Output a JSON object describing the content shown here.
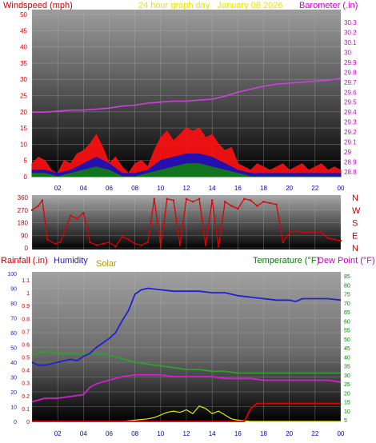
{
  "colors": {
    "windspeed_title": "#d40000",
    "date_title": "#f0e000",
    "barometer_title": "#cc00cc",
    "barometer_line": "#d040e0",
    "wind_gust": "#ff1010",
    "wind_speed": "#1010c0",
    "wind_avg": "#108010",
    "wind_dir": "#e00000",
    "rain_axis": "#c00000",
    "humidity": "#2020d0",
    "solar": "#e8e800",
    "temperature": "#30a030",
    "dewpoint": "#d020d0",
    "temp_axis": "#008000",
    "time_axis": "#0000c0"
  },
  "chart_data": [
    {
      "type": "line",
      "title": "24 hour graph day   January 08 2026",
      "ylabel": "Windspeed (mph)",
      "y2label": "Barometer (.in)",
      "x_tick_labels": [
        "02",
        "04",
        "06",
        "08",
        "10",
        "12",
        "14",
        "16",
        "18",
        "20",
        "22",
        "00"
      ],
      "ylim": [
        0,
        50
      ],
      "y_ticks": [
        0,
        5,
        10,
        15,
        20,
        25,
        30,
        35,
        40,
        45,
        50
      ],
      "y2lim": [
        28.7,
        30.3
      ],
      "y2_ticks": [
        "28.8",
        "28.9",
        "29",
        "29.1",
        "29.2",
        "29.3",
        "29.4",
        "29.5",
        "29.6",
        "29.7",
        "29.8",
        "29.9",
        "30",
        "30.1",
        "30.2",
        "30.3"
      ],
      "grid": true,
      "series": [
        {
          "name": "Barometer",
          "axis": "right",
          "x": [
            0,
            1,
            2,
            3,
            4,
            5,
            6,
            7,
            8,
            9,
            10,
            11,
            12,
            13,
            14,
            15,
            16,
            17,
            18,
            19,
            20,
            21,
            22,
            23,
            24
          ],
          "values": [
            29.4,
            29.4,
            29.41,
            29.42,
            29.42,
            29.43,
            29.44,
            29.46,
            29.47,
            29.49,
            29.5,
            29.51,
            29.51,
            29.52,
            29.53,
            29.56,
            29.6,
            29.63,
            29.66,
            29.68,
            29.69,
            29.7,
            29.71,
            29.72,
            29.74
          ]
        },
        {
          "name": "Wind gust",
          "axis": "left",
          "x": [
            0,
            0.5,
            1,
            1.5,
            2,
            2.5,
            3,
            3.5,
            4,
            4.5,
            5,
            5.5,
            6,
            6.5,
            7,
            7.5,
            8,
            8.5,
            9,
            9.5,
            10,
            10.5,
            11,
            11.5,
            12,
            12.5,
            13,
            13.5,
            14,
            14.5,
            15,
            15.5,
            16,
            16.5,
            17,
            17.5,
            18,
            18.5,
            19,
            19.5,
            20,
            20.5,
            21,
            21.5,
            22,
            22.5,
            23,
            23.5,
            24
          ],
          "values": [
            4,
            6,
            5,
            2,
            1,
            5,
            4,
            7,
            8,
            10,
            13,
            9,
            4,
            6,
            3,
            1,
            4,
            5,
            3,
            8,
            12,
            14,
            11,
            13,
            15,
            14,
            15,
            12,
            13,
            10,
            8,
            9,
            4,
            3,
            2,
            4,
            3,
            2,
            3,
            4,
            2,
            3,
            4,
            2,
            3,
            4,
            2,
            3,
            2
          ]
        },
        {
          "name": "Wind speed",
          "axis": "left",
          "x": [
            0,
            1,
            2,
            3,
            4,
            5,
            6,
            7,
            8,
            9,
            10,
            11,
            12,
            13,
            14,
            15,
            16,
            17,
            18,
            19,
            20,
            21,
            22,
            23,
            24
          ],
          "values": [
            2,
            2,
            1,
            2,
            4,
            6,
            4,
            1,
            1,
            2,
            5,
            6,
            7,
            7,
            6,
            4,
            2,
            1,
            1,
            1,
            1,
            1,
            1,
            1,
            1
          ]
        },
        {
          "name": "Wind average",
          "axis": "left",
          "x": [
            0,
            1,
            2,
            3,
            4,
            5,
            6,
            7,
            8,
            9,
            10,
            11,
            12,
            13,
            14,
            15,
            16,
            17,
            18,
            19,
            20,
            21,
            22,
            23,
            24
          ],
          "values": [
            1,
            1,
            0,
            1,
            2,
            3,
            2,
            0,
            0,
            1,
            2,
            3,
            4,
            4,
            3,
            2,
            1,
            0,
            0,
            0,
            0,
            0,
            0,
            0,
            0
          ]
        }
      ]
    },
    {
      "type": "scatter",
      "title": "",
      "ylabel": "",
      "y_tick_labels": [
        "360",
        "270",
        "180",
        "90",
        "0"
      ],
      "right_labels": [
        "N",
        "W",
        "S",
        "E",
        "N"
      ],
      "x_tick_labels": [],
      "ylim": [
        0,
        360
      ],
      "grid": true,
      "series": [
        {
          "name": "Wind direction",
          "x": [
            0,
            0.5,
            0.8,
            1.2,
            1.8,
            2.2,
            3,
            3.5,
            4,
            4.5,
            5,
            5.5,
            6,
            6.5,
            7,
            7.5,
            8,
            8.5,
            9,
            9.5,
            10,
            10.5,
            11,
            11.5,
            12,
            12.5,
            13,
            13.5,
            14,
            14.5,
            15,
            15.5,
            16,
            16.5,
            17,
            17.5,
            18,
            18.5,
            19,
            19.5,
            20,
            20.5,
            21,
            21.5,
            22,
            22.5,
            23,
            23.5,
            24
          ],
          "values": [
            270,
            300,
            340,
            60,
            30,
            40,
            230,
            210,
            250,
            40,
            20,
            30,
            40,
            10,
            80,
            60,
            30,
            20,
            40,
            350,
            10,
            350,
            340,
            20,
            350,
            330,
            350,
            20,
            340,
            10,
            330,
            300,
            280,
            350,
            340,
            300,
            330,
            320,
            310,
            40,
            110,
            120,
            110,
            110,
            110,
            110,
            70,
            60,
            50
          ]
        }
      ]
    },
    {
      "type": "line",
      "title": "",
      "ylabel": "Rainfall (.in)",
      "legend": [
        "Humidity",
        "Solar",
        "Temperature (°F)",
        "Dew Point (°F)"
      ],
      "x_tick_labels": [
        "02",
        "04",
        "06",
        "08",
        "10",
        "12",
        "14",
        "16",
        "18",
        "20",
        "22",
        "00"
      ],
      "rain_ticks": [
        "0",
        "0.1",
        "0.2",
        "0.3",
        "0.4",
        "0.5",
        "0.6",
        "0.7",
        "0.8",
        "0.9",
        "1",
        "1.1"
      ],
      "rain_ylim": [
        0,
        1.15
      ],
      "humidity_ticks": [
        0,
        10,
        20,
        30,
        40,
        50,
        60,
        70,
        80,
        90,
        100
      ],
      "humidity_ylim": [
        0,
        100
      ],
      "temp_ticks": [
        5,
        10,
        15,
        20,
        25,
        30,
        35,
        40,
        45,
        50,
        55,
        60,
        65,
        70,
        75,
        80,
        85
      ],
      "temp_ylim": [
        1.2,
        85
      ],
      "grid": true,
      "series": [
        {
          "name": "Humidity",
          "axis": "humidity",
          "x": [
            0,
            0.5,
            1,
            1.5,
            2,
            2.5,
            3,
            3.5,
            4,
            4.5,
            5,
            5.5,
            6,
            6.5,
            7,
            7.5,
            8,
            8.5,
            9,
            10,
            11,
            12,
            13,
            14,
            15,
            16,
            17,
            18,
            19,
            20,
            20.5,
            21,
            22,
            23,
            24
          ],
          "values": [
            40,
            38,
            38,
            39,
            40,
            41,
            42,
            41,
            44,
            46,
            50,
            53,
            56,
            60,
            68,
            75,
            86,
            89,
            90,
            89,
            88,
            88,
            88,
            87,
            87,
            85,
            84,
            83,
            82,
            82,
            81,
            83,
            83,
            83,
            82
          ]
        },
        {
          "name": "Temperature",
          "axis": "temp",
          "x": [
            0,
            0.5,
            1,
            2,
            3,
            4,
            5,
            6,
            7,
            8,
            9,
            10,
            11,
            12,
            13,
            14,
            15,
            16,
            17,
            18,
            19,
            20,
            21,
            22,
            23,
            24
          ],
          "values": [
            41,
            42,
            43,
            42,
            42,
            42,
            42,
            41,
            39,
            37,
            36,
            35,
            34,
            33,
            33,
            32,
            32,
            31,
            31,
            31,
            31,
            31,
            31,
            31,
            31,
            31
          ]
        },
        {
          "name": "Dew Point",
          "axis": "temp",
          "x": [
            0,
            1,
            2,
            3,
            4,
            4.5,
            5,
            6,
            7,
            8,
            9,
            10,
            11,
            12,
            13,
            14,
            15,
            16,
            17,
            18,
            19,
            20,
            21,
            22,
            23,
            24
          ],
          "values": [
            15,
            17,
            17,
            18,
            19,
            23,
            25,
            27,
            29,
            30,
            30,
            30,
            29,
            29,
            29,
            29,
            28,
            28,
            28,
            27,
            27,
            27,
            27,
            27,
            27,
            26
          ]
        },
        {
          "name": "Solar",
          "axis": "rain",
          "x": [
            0,
            7,
            7.5,
            8,
            8.5,
            9,
            9.5,
            10,
            10.5,
            11,
            11.5,
            12,
            12.5,
            13,
            13.5,
            14,
            14.5,
            15,
            15.5,
            16,
            16.5,
            17,
            24
          ],
          "values": [
            0,
            0,
            0.005,
            0.01,
            0.015,
            0.02,
            0.03,
            0.05,
            0.07,
            0.08,
            0.07,
            0.09,
            0.06,
            0.12,
            0.1,
            0.06,
            0.08,
            0.05,
            0.02,
            0.01,
            0.005,
            0,
            0
          ]
        },
        {
          "name": "Rainfall",
          "axis": "rain",
          "x": [
            0,
            16.5,
            17,
            17.5,
            18,
            24
          ],
          "values": [
            0,
            0,
            0.1,
            0.14,
            0.14,
            0.14
          ]
        }
      ]
    }
  ]
}
